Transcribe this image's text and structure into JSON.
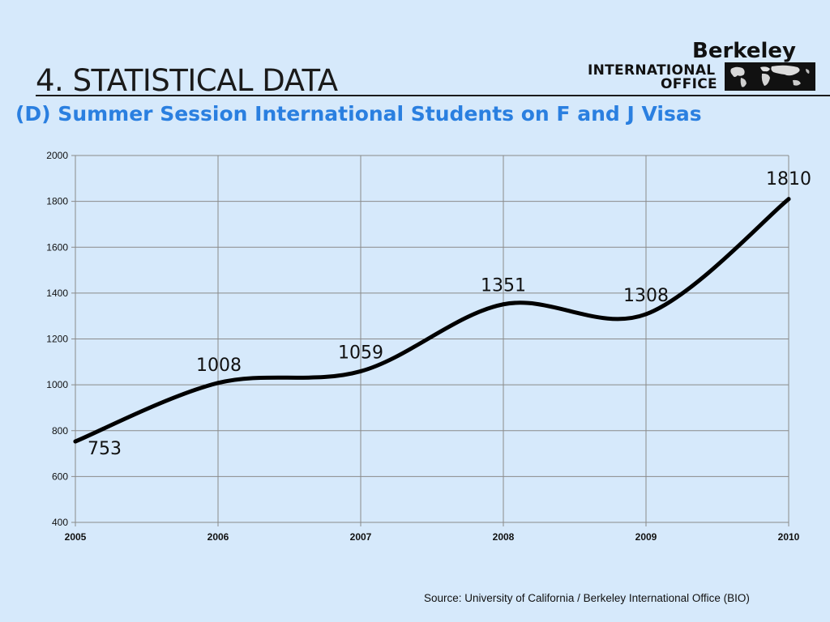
{
  "header": {
    "title": "4. STATISTICAL DATA",
    "subtitle": "(D) Summer Session International Students on F and J Visas"
  },
  "logo": {
    "name": "Berkeley",
    "line1": "INTERNATIONAL",
    "line2": "OFFICE"
  },
  "chart_data": {
    "type": "line",
    "title": "",
    "xlabel": "",
    "ylabel": "",
    "x": [
      "2005",
      "2006",
      "2007",
      "2008",
      "2009",
      "2010"
    ],
    "series": [
      {
        "values": [
          753,
          1008,
          1059,
          1351,
          1308,
          1810
        ]
      }
    ],
    "data_labels": [
      "753",
      "1008",
      "1059",
      "1351",
      "1308",
      "1810"
    ],
    "ylim": [
      400,
      2000
    ],
    "y_ticks": [
      400,
      600,
      800,
      1000,
      1200,
      1400,
      1600,
      1800,
      2000
    ],
    "grid": true,
    "smooth": true,
    "legend": "none",
    "line_color": "#000000",
    "grid_color": "#8a8a8a"
  },
  "footer": {
    "source": "Source:  University of California / Berkeley International Office (BIO)"
  }
}
